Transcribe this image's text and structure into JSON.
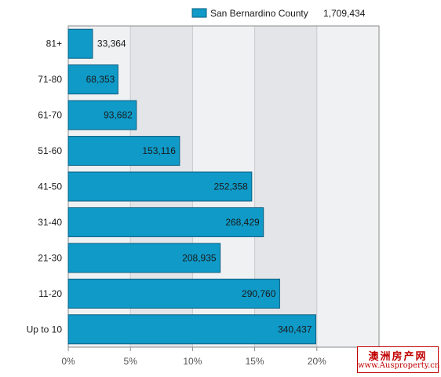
{
  "chart_data": {
    "type": "bar",
    "orientation": "horizontal",
    "categories": [
      "81+",
      "71-80",
      "61-70",
      "51-60",
      "41-50",
      "31-40",
      "21-30",
      "11-20",
      "Up to 10"
    ],
    "series": [
      {
        "name": "San Bernardino County",
        "total": "1,709,434",
        "values": [
          33364,
          68353,
          93682,
          153116,
          252358,
          268429,
          208935,
          290760,
          340437
        ],
        "value_labels": [
          "33,364",
          "68,353",
          "93,682",
          "153,116",
          "252,358",
          "268,429",
          "208,935",
          "290,760",
          "340,437"
        ]
      }
    ],
    "x_tick_labels": [
      "0%",
      "5%",
      "10%",
      "15%",
      "20%"
    ],
    "xlim": [
      0,
      25
    ],
    "x_unit": "percent of total",
    "grid": true,
    "legend_position": "top-right"
  },
  "colors": {
    "bar_fill": "#0f9ac8",
    "bar_stroke": "#0a5e80",
    "band_light": "#f0f1f3",
    "band_dark": "#e4e5e8",
    "plot_border": "#8a8a8a"
  },
  "watermark": {
    "chinese": "澳洲房产网",
    "url": "www.Ausproperty.cn"
  }
}
